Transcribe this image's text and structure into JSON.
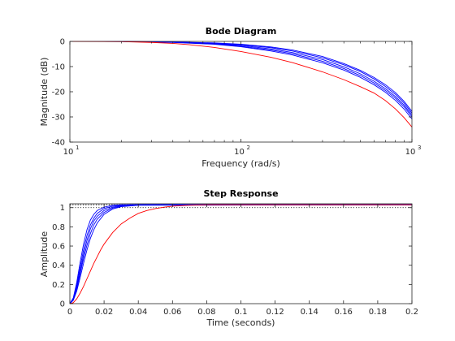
{
  "chart_data": [
    {
      "type": "line",
      "title": "Bode Diagram",
      "xlabel": "Frequency  (rad/s)",
      "ylabel": "Magnitude (dB)",
      "xscale": "log",
      "xlim": [
        10,
        1000
      ],
      "ylim": [
        -40,
        0
      ],
      "yticks": [
        0,
        -10,
        -20,
        -30,
        -40
      ],
      "xtick_labels": [
        {
          "base": "10",
          "exp": "1",
          "value": 10
        },
        {
          "base": "10",
          "exp": "2",
          "value": 100
        },
        {
          "base": "10",
          "exp": "3",
          "value": 1000
        }
      ],
      "grid": false,
      "series": [
        {
          "color": "#0000ff",
          "points": [
            [
              10,
              0
            ],
            [
              20,
              -0.02
            ],
            [
              40,
              -0.2
            ],
            [
              70,
              -0.6
            ],
            [
              100,
              -1.1
            ],
            [
              150,
              -2.2
            ],
            [
              200,
              -3.4
            ],
            [
              300,
              -6.0
            ],
            [
              400,
              -8.8
            ],
            [
              500,
              -11.5
            ],
            [
              600,
              -14.3
            ],
            [
              700,
              -17.2
            ],
            [
              800,
              -20.3
            ],
            [
              900,
              -23.8
            ],
            [
              1000,
              -27.8
            ]
          ]
        },
        {
          "color": "#0000ff",
          "points": [
            [
              10,
              0
            ],
            [
              20,
              -0.02
            ],
            [
              40,
              -0.25
            ],
            [
              70,
              -0.7
            ],
            [
              100,
              -1.3
            ],
            [
              150,
              -2.5
            ],
            [
              200,
              -3.8
            ],
            [
              300,
              -6.5
            ],
            [
              400,
              -9.3
            ],
            [
              500,
              -12.0
            ],
            [
              600,
              -14.9
            ],
            [
              700,
              -17.9
            ],
            [
              800,
              -21.0
            ],
            [
              900,
              -24.5
            ],
            [
              1000,
              -28.5
            ]
          ]
        },
        {
          "color": "#0000ff",
          "points": [
            [
              10,
              0
            ],
            [
              20,
              -0.03
            ],
            [
              40,
              -0.3
            ],
            [
              70,
              -0.85
            ],
            [
              100,
              -1.6
            ],
            [
              150,
              -3.0
            ],
            [
              200,
              -4.4
            ],
            [
              300,
              -7.2
            ],
            [
              400,
              -10.1
            ],
            [
              500,
              -12.9
            ],
            [
              600,
              -15.8
            ],
            [
              700,
              -18.8
            ],
            [
              800,
              -21.9
            ],
            [
              900,
              -25.3
            ],
            [
              1000,
              -29.2
            ]
          ]
        },
        {
          "color": "#0000ff",
          "points": [
            [
              10,
              0
            ],
            [
              20,
              -0.03
            ],
            [
              40,
              -0.35
            ],
            [
              70,
              -1.0
            ],
            [
              100,
              -1.9
            ],
            [
              150,
              -3.4
            ],
            [
              200,
              -4.9
            ],
            [
              300,
              -7.9
            ],
            [
              400,
              -10.8
            ],
            [
              500,
              -13.6
            ],
            [
              600,
              -16.5
            ],
            [
              700,
              -19.5
            ],
            [
              800,
              -22.6
            ],
            [
              900,
              -26.0
            ],
            [
              1000,
              -29.9
            ]
          ]
        },
        {
          "color": "#0000ff",
          "points": [
            [
              10,
              0
            ],
            [
              20,
              -0.04
            ],
            [
              40,
              -0.4
            ],
            [
              70,
              -1.15
            ],
            [
              100,
              -2.1
            ],
            [
              150,
              -3.8
            ],
            [
              200,
              -5.4
            ],
            [
              300,
              -8.5
            ],
            [
              400,
              -11.4
            ],
            [
              500,
              -14.3
            ],
            [
              600,
              -17.2
            ],
            [
              700,
              -20.2
            ],
            [
              800,
              -23.4
            ],
            [
              900,
              -26.9
            ],
            [
              1000,
              -30.8
            ]
          ]
        },
        {
          "color": "#ff0000",
          "points": [
            [
              10,
              0
            ],
            [
              20,
              -0.1
            ],
            [
              30,
              -0.4
            ],
            [
              40,
              -0.8
            ],
            [
              50,
              -1.3
            ],
            [
              70,
              -2.4
            ],
            [
              100,
              -4.0
            ],
            [
              150,
              -6.3
            ],
            [
              200,
              -8.4
            ],
            [
              300,
              -12.1
            ],
            [
              400,
              -15.2
            ],
            [
              500,
              -18.0
            ],
            [
              600,
              -20.5
            ],
            [
              700,
              -23.5
            ],
            [
              800,
              -26.8
            ],
            [
              900,
              -30.3
            ],
            [
              1000,
              -34.0
            ]
          ]
        }
      ]
    },
    {
      "type": "line",
      "title": "Step Response",
      "xlabel": "Time (seconds)",
      "ylabel": "Amplitude",
      "xlim": [
        0,
        0.2
      ],
      "ylim": [
        0,
        1.04
      ],
      "xticks": [
        0,
        0.02,
        0.04,
        0.06,
        0.08,
        0.1,
        0.12,
        0.14,
        0.16,
        0.18,
        0.2
      ],
      "xtick_labels": [
        "0",
        "0.02",
        "0.04",
        "0.06",
        "0.08",
        "0.1",
        "0.12",
        "0.14",
        "0.16",
        "0.18",
        "0.2"
      ],
      "yticks": [
        0,
        0.2,
        0.4,
        0.6,
        0.8,
        1
      ],
      "ytick_labels": [
        "0",
        "0.2",
        "0.4",
        "0.6",
        "0.8",
        "1"
      ],
      "reference_lines": [
        1.0,
        1.03
      ],
      "grid": false,
      "series": [
        {
          "color": "#0000ff",
          "points": [
            [
              0,
              0
            ],
            [
              0.002,
              0.06
            ],
            [
              0.004,
              0.22
            ],
            [
              0.006,
              0.43
            ],
            [
              0.008,
              0.62
            ],
            [
              0.01,
              0.77
            ],
            [
              0.012,
              0.87
            ],
            [
              0.014,
              0.93
            ],
            [
              0.016,
              0.97
            ],
            [
              0.02,
              1.005
            ],
            [
              0.025,
              1.025
            ],
            [
              0.03,
              1.03
            ],
            [
              0.2,
              1.03
            ]
          ]
        },
        {
          "color": "#0000ff",
          "points": [
            [
              0,
              0
            ],
            [
              0.002,
              0.05
            ],
            [
              0.004,
              0.19
            ],
            [
              0.006,
              0.38
            ],
            [
              0.008,
              0.56
            ],
            [
              0.01,
              0.71
            ],
            [
              0.012,
              0.82
            ],
            [
              0.014,
              0.89
            ],
            [
              0.016,
              0.94
            ],
            [
              0.02,
              0.99
            ],
            [
              0.025,
              1.015
            ],
            [
              0.03,
              1.025
            ],
            [
              0.035,
              1.03
            ],
            [
              0.2,
              1.03
            ]
          ]
        },
        {
          "color": "#0000ff",
          "points": [
            [
              0,
              0
            ],
            [
              0.002,
              0.045
            ],
            [
              0.004,
              0.17
            ],
            [
              0.006,
              0.34
            ],
            [
              0.008,
              0.51
            ],
            [
              0.01,
              0.66
            ],
            [
              0.012,
              0.78
            ],
            [
              0.014,
              0.86
            ],
            [
              0.016,
              0.91
            ],
            [
              0.02,
              0.97
            ],
            [
              0.025,
              1.005
            ],
            [
              0.03,
              1.02
            ],
            [
              0.04,
              1.03
            ],
            [
              0.2,
              1.03
            ]
          ]
        },
        {
          "color": "#0000ff",
          "points": [
            [
              0,
              0
            ],
            [
              0.002,
              0.04
            ],
            [
              0.004,
              0.15
            ],
            [
              0.006,
              0.31
            ],
            [
              0.008,
              0.47
            ],
            [
              0.01,
              0.61
            ],
            [
              0.012,
              0.73
            ],
            [
              0.014,
              0.82
            ],
            [
              0.016,
              0.88
            ],
            [
              0.02,
              0.95
            ],
            [
              0.025,
              0.995
            ],
            [
              0.03,
              1.015
            ],
            [
              0.04,
              1.028
            ],
            [
              0.2,
              1.03
            ]
          ]
        },
        {
          "color": "#0000ff",
          "points": [
            [
              0,
              0
            ],
            [
              0.002,
              0.035
            ],
            [
              0.004,
              0.13
            ],
            [
              0.006,
              0.27
            ],
            [
              0.008,
              0.42
            ],
            [
              0.01,
              0.56
            ],
            [
              0.012,
              0.68
            ],
            [
              0.014,
              0.77
            ],
            [
              0.016,
              0.84
            ],
            [
              0.02,
              0.93
            ],
            [
              0.025,
              0.985
            ],
            [
              0.03,
              1.01
            ],
            [
              0.04,
              1.025
            ],
            [
              0.2,
              1.03
            ]
          ]
        },
        {
          "color": "#ff0000",
          "points": [
            [
              0,
              0
            ],
            [
              0.002,
              0.01
            ],
            [
              0.004,
              0.05
            ],
            [
              0.006,
              0.11
            ],
            [
              0.008,
              0.18
            ],
            [
              0.01,
              0.26
            ],
            [
              0.012,
              0.34
            ],
            [
              0.014,
              0.42
            ],
            [
              0.016,
              0.49
            ],
            [
              0.018,
              0.56
            ],
            [
              0.02,
              0.62
            ],
            [
              0.025,
              0.74
            ],
            [
              0.03,
              0.83
            ],
            [
              0.035,
              0.89
            ],
            [
              0.04,
              0.94
            ],
            [
              0.045,
              0.97
            ],
            [
              0.05,
              0.99
            ],
            [
              0.055,
              1.005
            ],
            [
              0.06,
              1.015
            ],
            [
              0.07,
              1.025
            ],
            [
              0.08,
              1.03
            ],
            [
              0.2,
              1.03
            ]
          ]
        }
      ]
    }
  ]
}
